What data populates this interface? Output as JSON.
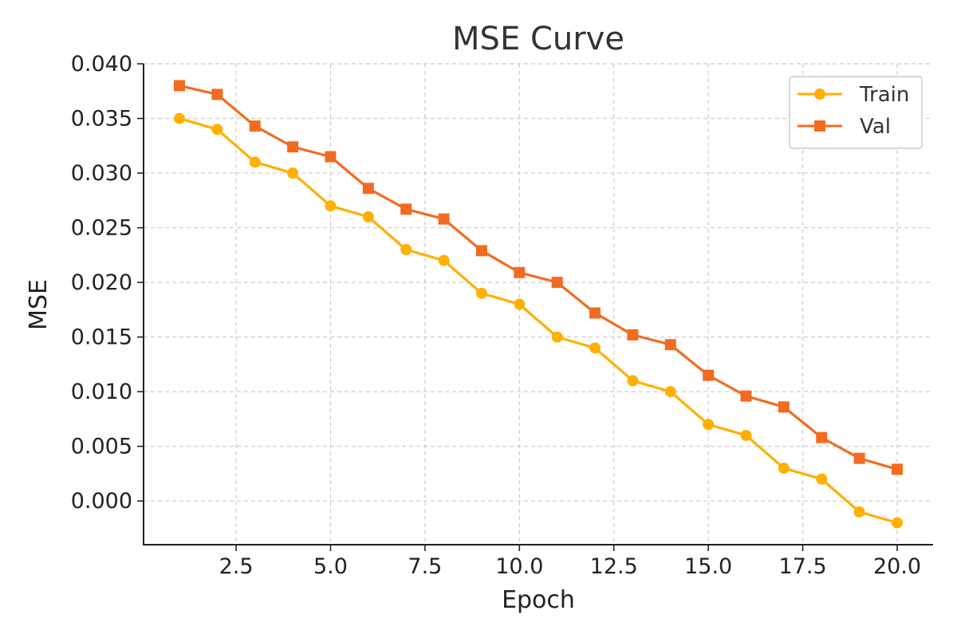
{
  "chart_data": {
    "type": "line",
    "title": "MSE Curve",
    "xlabel": "Epoch",
    "ylabel": "MSE",
    "x": [
      1,
      2,
      3,
      4,
      5,
      6,
      7,
      8,
      9,
      10,
      11,
      12,
      13,
      14,
      15,
      16,
      17,
      18,
      19,
      20
    ],
    "xlim": [
      0.05,
      20.95
    ],
    "ylim": [
      -0.004,
      0.04
    ],
    "xticks": [
      2.5,
      5.0,
      7.5,
      10.0,
      12.5,
      15.0,
      17.5,
      20.0
    ],
    "xtick_labels": [
      "2.5",
      "5.0",
      "7.5",
      "10.0",
      "12.5",
      "15.0",
      "17.5",
      "20.0"
    ],
    "yticks": [
      0.0,
      0.005,
      0.01,
      0.015,
      0.02,
      0.025,
      0.03,
      0.035,
      0.04
    ],
    "ytick_labels": [
      "0.000",
      "0.005",
      "0.010",
      "0.015",
      "0.020",
      "0.025",
      "0.030",
      "0.035",
      "0.040"
    ],
    "grid": true,
    "legend_position": "top-right",
    "series": [
      {
        "name": "Train",
        "color": "#FFB000",
        "marker": "circle",
        "values": [
          0.035,
          0.034,
          0.031,
          0.03,
          0.027,
          0.026,
          0.023,
          0.022,
          0.019,
          0.018,
          0.015,
          0.014,
          0.011,
          0.01,
          0.007,
          0.006,
          0.003,
          0.002,
          -0.001,
          -0.002
        ]
      },
      {
        "name": "Val",
        "color": "#F26B21",
        "marker": "square",
        "values": [
          0.038,
          0.0372,
          0.0343,
          0.0324,
          0.0315,
          0.0286,
          0.0267,
          0.0258,
          0.0229,
          0.0209,
          0.02,
          0.0172,
          0.0152,
          0.0143,
          0.0115,
          0.0096,
          0.0086,
          0.0058,
          0.0039,
          0.0029
        ]
      }
    ]
  }
}
